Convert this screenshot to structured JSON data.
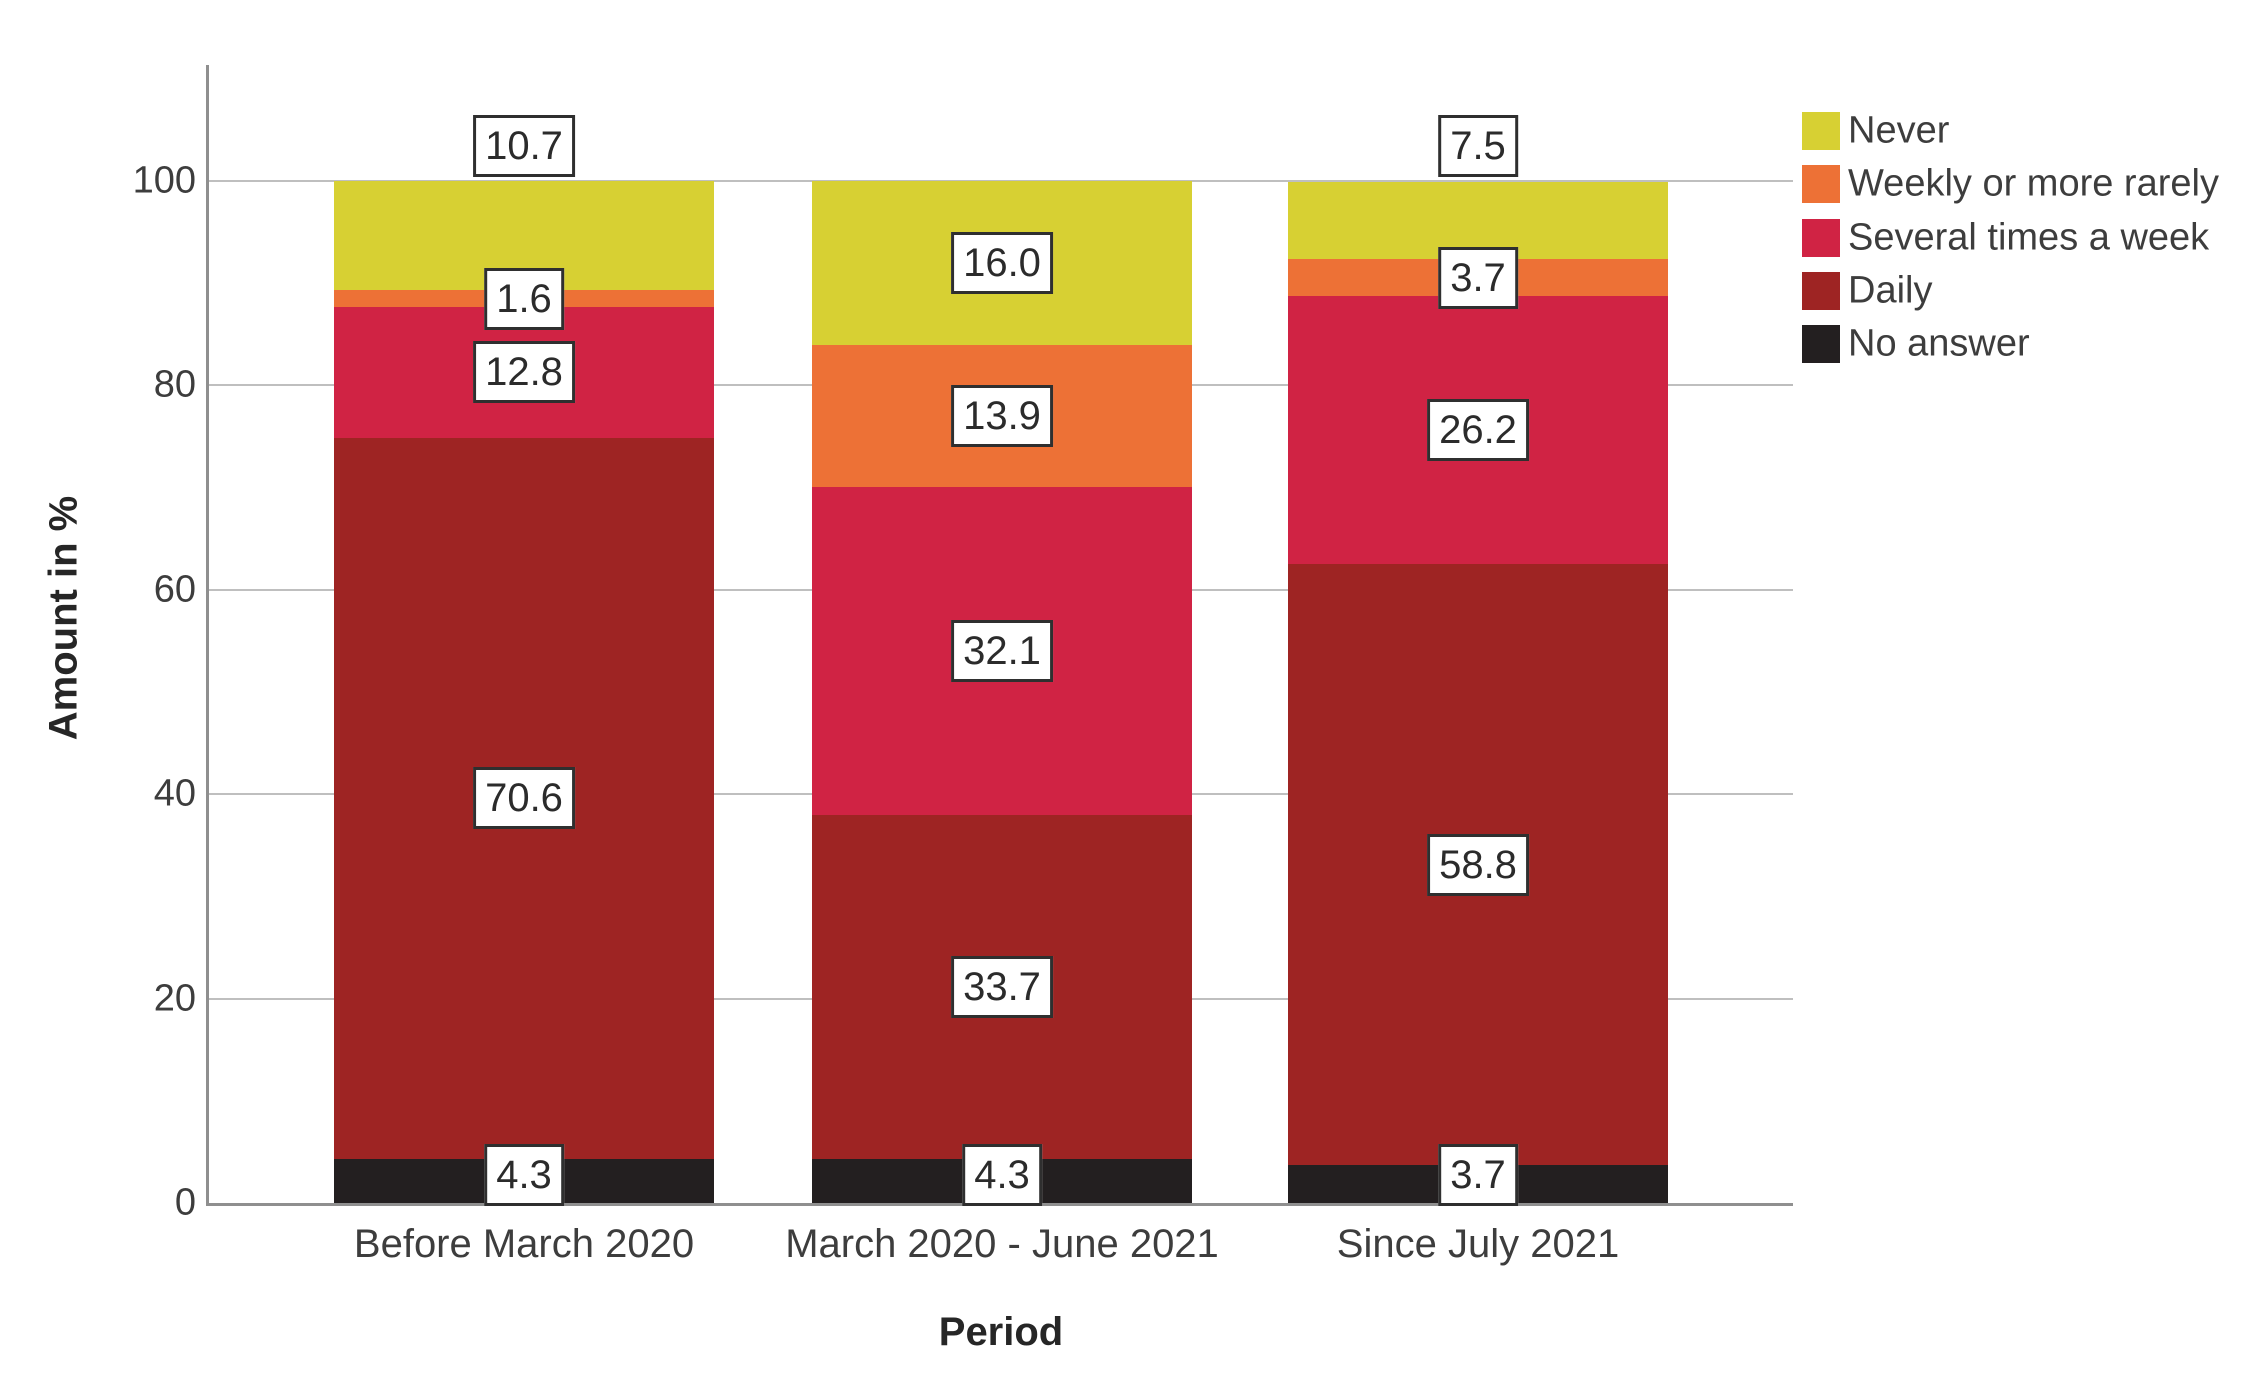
{
  "chart_data": {
    "type": "bar",
    "stacked": true,
    "title": "",
    "xlabel": "Period",
    "ylabel": "Amount in %",
    "ylim": [
      0,
      100
    ],
    "yticks": [
      0,
      20,
      40,
      60,
      80,
      100
    ],
    "grid": "horizontal",
    "legend_position": "top-right",
    "categories": [
      "Before March 2020",
      "March 2020 - June 2021",
      "Since July 2021"
    ],
    "series": [
      {
        "name": "No answer",
        "color": "#231f20",
        "values": [
          4.3,
          4.3,
          3.7
        ]
      },
      {
        "name": "Daily",
        "color": "#9e2423",
        "values": [
          70.6,
          33.7,
          58.8
        ]
      },
      {
        "name": "Several times a week",
        "color": "#d02344",
        "values": [
          12.8,
          32.1,
          26.2
        ]
      },
      {
        "name": "Weekly or more rarely",
        "color": "#ed7136",
        "values": [
          1.6,
          13.9,
          3.7
        ]
      },
      {
        "name": "Never",
        "color": "#d7d033",
        "values": [
          10.7,
          16.0,
          7.5
        ]
      }
    ],
    "legend_order": [
      "Never",
      "Weekly or more rarely",
      "Several times a week",
      "Daily",
      "No answer"
    ],
    "data_labels_shown": true,
    "top_label_outside": [
      true,
      false,
      true
    ],
    "colors": {
      "gridline": "#bfbfbf",
      "axis_line": "#8f8f8f",
      "tick_text": "#3d3d3d",
      "label_box_border": "#2f2f2f",
      "label_box_bg": "#ffffff"
    }
  }
}
